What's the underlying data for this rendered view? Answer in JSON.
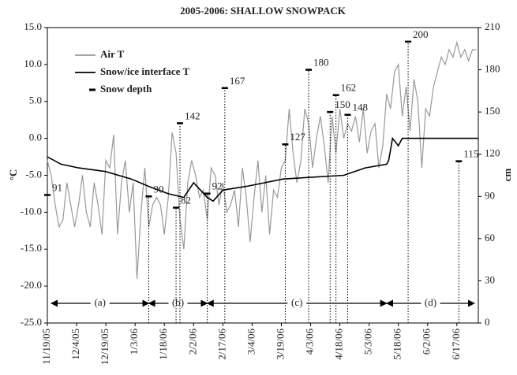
{
  "chart_data": {
    "type": "line",
    "title": "2005-2006: SHALLOW SNOWPACK",
    "ylabel": "°C",
    "y2label": "cm",
    "xlim": [
      "11/19/05",
      "6/28/06"
    ],
    "xticks": [
      "11/19/05",
      "12/4/05",
      "12/19/05",
      "1/3/06",
      "1/18/06",
      "2/2/06",
      "2/17/06",
      "3/4/06",
      "3/19/06",
      "4/3/06",
      "4/18/06",
      "5/3/06",
      "5/18/06",
      "6/2/06",
      "6/17/06"
    ],
    "ylim": [
      -25,
      15
    ],
    "yticks": [
      {
        "value": -25,
        "label": "-25.0"
      },
      {
        "value": -20,
        "label": "-20.0"
      },
      {
        "value": -15,
        "label": "-15.0"
      },
      {
        "value": -10,
        "label": "-10.0"
      },
      {
        "value": -5,
        "label": "-5.0"
      },
      {
        "value": 0,
        "label": "0.0"
      },
      {
        "value": 5,
        "label": "5.0"
      },
      {
        "value": 10,
        "label": "10.0"
      },
      {
        "value": 15,
        "label": "15.0"
      }
    ],
    "y2lim": [
      0,
      210
    ],
    "y2ticks": [
      0,
      30,
      60,
      90,
      120,
      150,
      180,
      210
    ],
    "legend": "upper left",
    "series": [
      {
        "name": "Air T",
        "color": "#999999",
        "kind": "line",
        "x": [
          "11/19/05",
          "11/21/05",
          "11/23/05",
          "11/25/05",
          "11/27/05",
          "11/29/05",
          "12/1/05",
          "12/3/05",
          "12/5/05",
          "12/7/05",
          "12/9/05",
          "12/11/05",
          "12/13/05",
          "12/15/05",
          "12/17/05",
          "12/19/05",
          "12/21/05",
          "12/23/05",
          "12/25/05",
          "12/27/05",
          "12/29/05",
          "12/31/05",
          "1/2/06",
          "1/4/06",
          "1/6/06",
          "1/8/06",
          "1/10/06",
          "1/12/06",
          "1/14/06",
          "1/16/06",
          "1/18/06",
          "1/20/06",
          "1/22/06",
          "1/24/06",
          "1/26/06",
          "1/28/06",
          "1/30/06",
          "2/1/06",
          "2/3/06",
          "2/5/06",
          "2/7/06",
          "2/9/06",
          "2/11/06",
          "2/13/06",
          "2/15/06",
          "2/17/06",
          "2/19/06",
          "2/21/06",
          "2/23/06",
          "2/25/06",
          "2/27/06",
          "3/1/06",
          "3/3/06",
          "3/5/06",
          "3/7/06",
          "3/9/06",
          "3/11/06",
          "3/13/06",
          "3/15/06",
          "3/17/06",
          "3/19/06",
          "3/21/06",
          "3/23/06",
          "3/25/06",
          "3/27/06",
          "3/29/06",
          "3/31/06",
          "4/2/06",
          "4/4/06",
          "4/6/06",
          "4/8/06",
          "4/10/06",
          "4/12/06",
          "4/14/06",
          "4/16/06",
          "4/18/06",
          "4/20/06",
          "4/22/06",
          "4/24/06",
          "4/26/06",
          "4/28/06",
          "4/30/06",
          "5/2/06",
          "5/4/06",
          "5/6/06",
          "5/8/06",
          "5/10/06",
          "5/12/06",
          "5/14/06",
          "5/16/06",
          "5/18/06",
          "5/20/06",
          "5/22/06",
          "5/24/06",
          "5/26/06",
          "5/28/06",
          "5/30/06",
          "6/1/06",
          "6/3/06",
          "6/5/06",
          "6/7/06",
          "6/9/06",
          "6/11/06",
          "6/13/06",
          "6/15/06",
          "6/17/06",
          "6/19/06",
          "6/21/06",
          "6/23/06",
          "6/25/06",
          "6/27/06"
        ],
        "values": [
          -3,
          -5,
          -9,
          -12,
          -11,
          -6,
          -9,
          -12,
          -9,
          -5,
          -10,
          -12,
          -6,
          -9,
          -13,
          -3,
          -4,
          0.5,
          -13,
          -6,
          -3,
          -10,
          -6,
          -19,
          -10,
          -4,
          -12,
          -9,
          -8,
          -9,
          -13,
          -8,
          0.8,
          -2,
          -11,
          -15,
          -6,
          -3,
          -5,
          -8,
          -7,
          -11,
          -4,
          -5,
          -9,
          -6,
          -10,
          -9,
          -7,
          -12,
          -4,
          -8,
          -14,
          -8,
          -3,
          -10,
          -5,
          -13,
          -7,
          -8,
          -4,
          -3,
          4,
          -2,
          -6,
          -3,
          4,
          2,
          -4,
          0,
          3,
          -1,
          -6,
          3,
          -2,
          4,
          0,
          2,
          1,
          3,
          -0.5,
          4,
          -2,
          1,
          2,
          -4,
          -1,
          6,
          4,
          9,
          10,
          3,
          7,
          1,
          8,
          5,
          -4,
          4,
          3,
          7,
          9,
          11,
          10,
          12,
          11,
          13,
          11,
          12,
          10.5,
          12,
          12
        ]
      },
      {
        "name": "Snow/ice interface T",
        "color": "#000000",
        "kind": "line",
        "x": [
          "11/19/05",
          "11/26/05",
          "12/5/05",
          "12/19/05",
          "1/1/06",
          "1/10/06",
          "1/20/06",
          "1/28/06",
          "2/2/06",
          "2/9/06",
          "2/12/06",
          "2/17/06",
          "3/1/06",
          "3/20/06",
          "4/20/06",
          "5/1/06",
          "5/12/06",
          "5/13/06",
          "5/15/06",
          "5/18/06",
          "5/20/06",
          "6/28/06"
        ],
        "values": [
          -2.5,
          -3.5,
          -4,
          -4.5,
          -5.5,
          -6.5,
          -7.5,
          -8,
          -6,
          -8,
          -8.5,
          -7,
          -6.5,
          -5.5,
          -5,
          -4,
          -3.5,
          -3,
          0,
          -1,
          0,
          0
        ]
      },
      {
        "name": "Snow depth",
        "color": "#000000",
        "kind": "depth",
        "axis": "y2",
        "x": [
          "11/19/05",
          "1/10/06",
          "1/24/06",
          "1/26/06",
          "2/9/06",
          "2/18/06",
          "3/21/06",
          "4/2/06",
          "4/13/06",
          "4/16/06",
          "4/22/06",
          "5/23/06",
          "6/18/06"
        ],
        "values": [
          91,
          90,
          82,
          142,
          92,
          167,
          127,
          180,
          150,
          162,
          148,
          200,
          115
        ]
      }
    ],
    "periods": [
      {
        "label": "(a)",
        "start": "11/21/05",
        "end": "1/10/06"
      },
      {
        "label": "(b)",
        "start": "1/10/06",
        "end": "2/9/06"
      },
      {
        "label": "(c)",
        "start": "2/9/06",
        "end": "5/12/06"
      },
      {
        "label": "(d)",
        "start": "5/12/06",
        "end": "6/26/06"
      }
    ]
  }
}
